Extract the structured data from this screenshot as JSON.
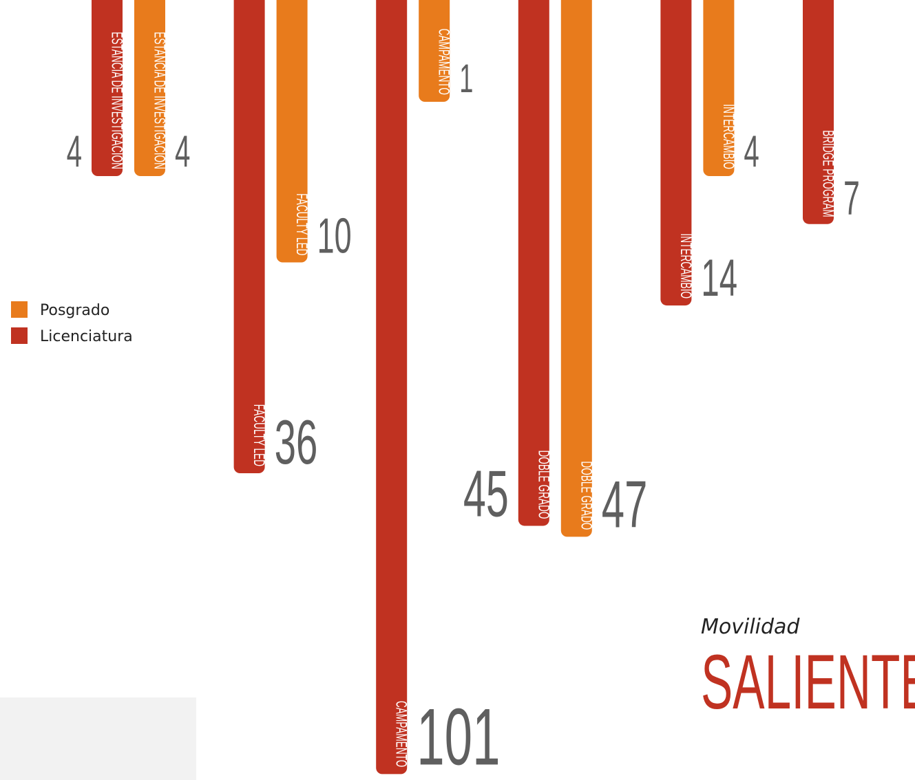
{
  "chart_data": {
    "type": "bar",
    "subtitle": "Movilidad",
    "title": "SALIENTE",
    "categories": [
      "ESTANCIA DE INVESTIGACIÓN",
      "FACULTY LED",
      "CAMPAMENTO",
      "DOBLE GRADO",
      "INTERCAMBIO",
      "BRIDGE PROGRAM"
    ],
    "series": [
      {
        "name": "Licenciatura",
        "color": "#c03221",
        "values": [
          4,
          36,
          101,
          45,
          14,
          7
        ]
      },
      {
        "name": "Posgrado",
        "color": "#e87b1c",
        "values": [
          4,
          10,
          1,
          47,
          4,
          null
        ]
      }
    ]
  }
}
